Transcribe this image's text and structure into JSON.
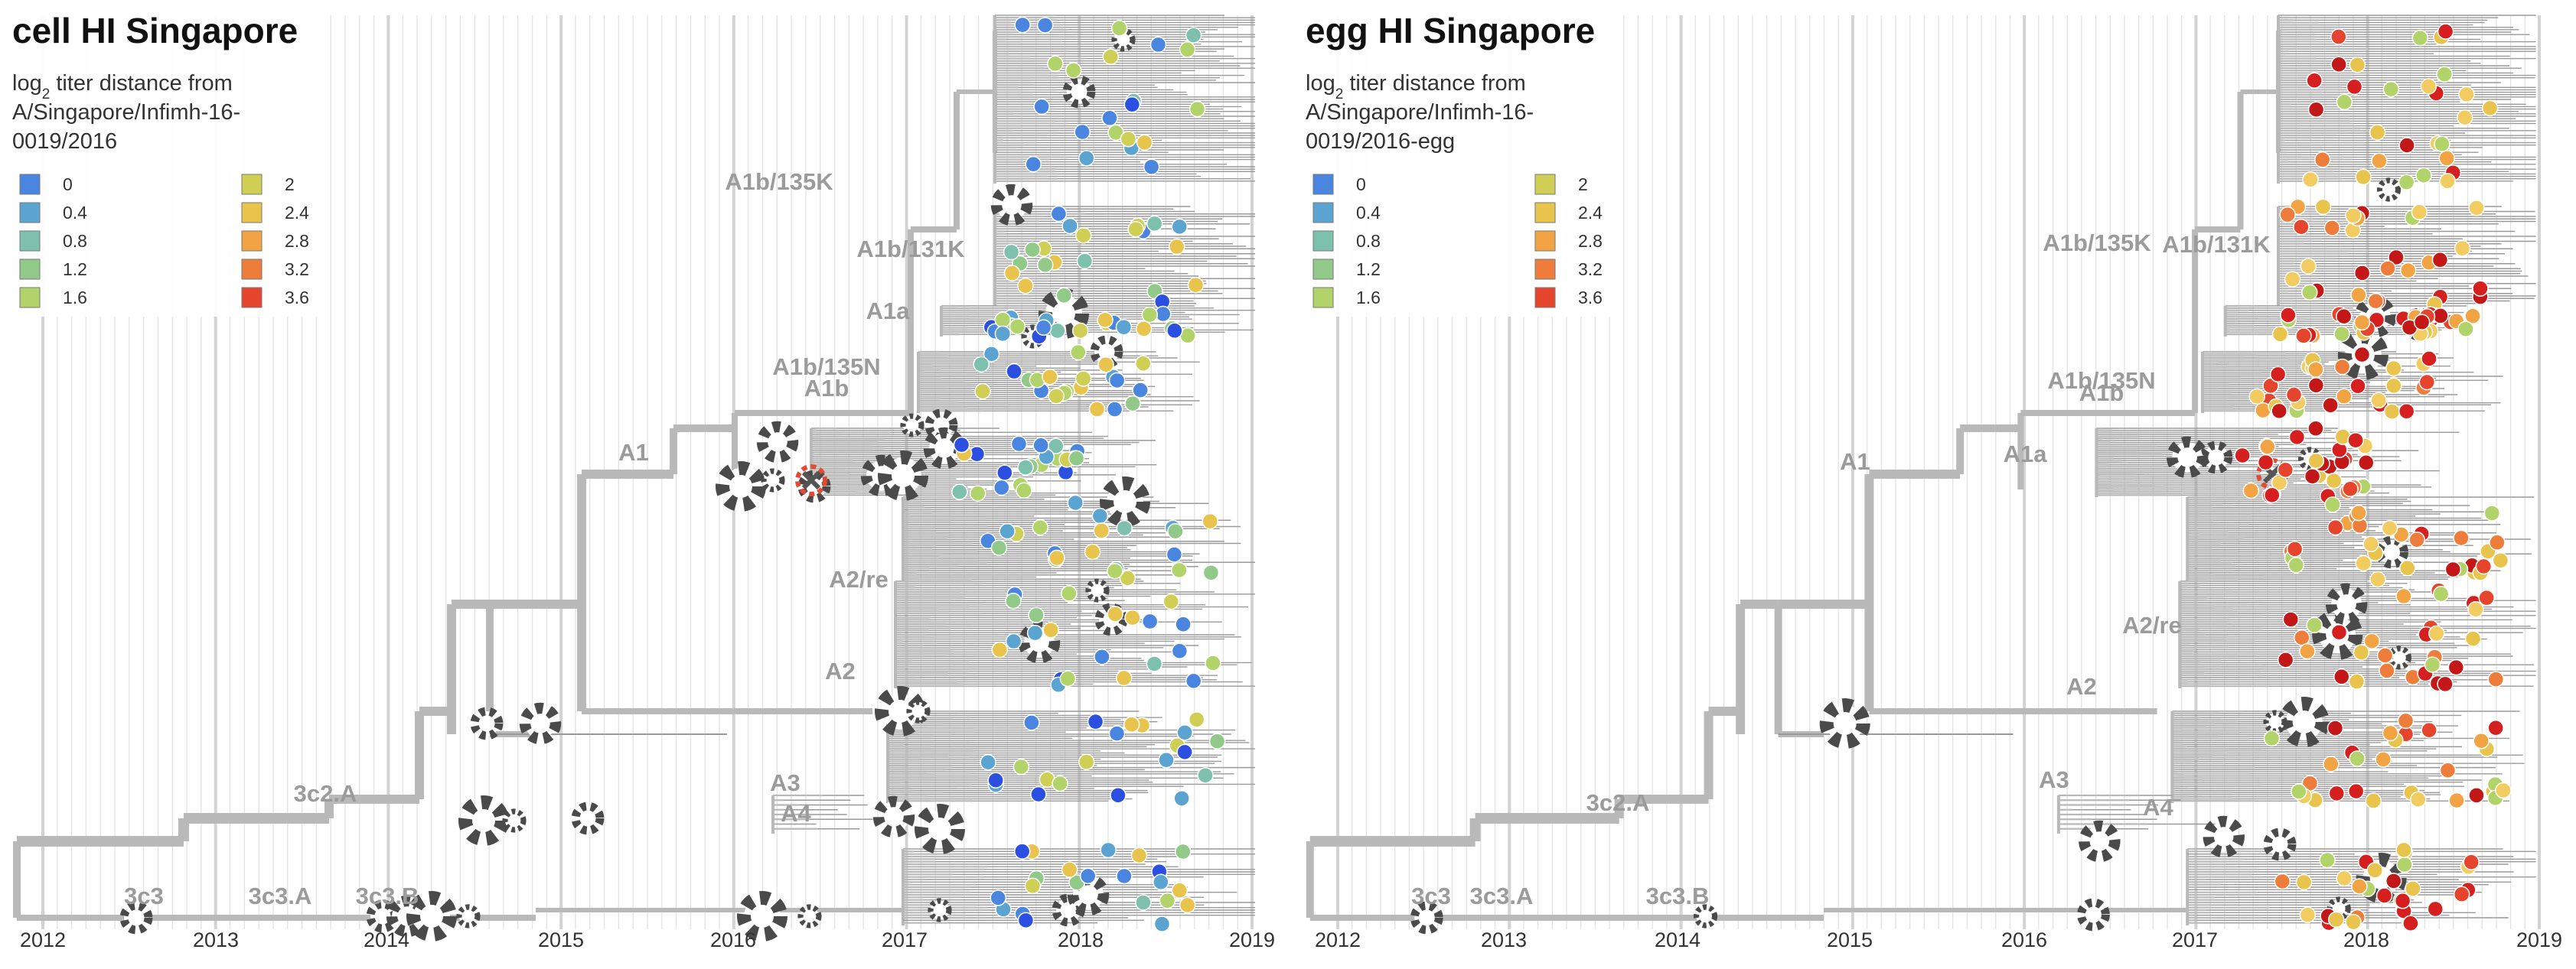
{
  "panels": [
    {
      "id": "left",
      "title": "cell HI Singapore",
      "subtitle_prefix": "log",
      "subtitle_sub": "2",
      "subtitle_lines": [
        " titer distance from",
        "A/Singapore/Infimh-16-",
        "0019/2016"
      ],
      "clades": [
        "A1b/135K",
        "A1b/131K",
        "A1a",
        "A1b/135N",
        "A1b",
        "A1",
        "A2/re",
        "A2",
        "A3",
        "A4",
        "3c2.A",
        "3c3",
        "3c3.A",
        "3c3.B"
      ],
      "years": [
        "2012",
        "2013",
        "2014",
        "2015",
        "2016",
        "2017",
        "2018",
        "2019"
      ],
      "tip_palette": "cool"
    },
    {
      "id": "right",
      "title": "egg HI Singapore",
      "subtitle_prefix": "log",
      "subtitle_sub": "2",
      "subtitle_lines": [
        " titer distance from",
        "A/Singapore/Infimh-16-",
        "0019/2016-egg"
      ],
      "clades": [
        "A1b/135K",
        "A1b/131K",
        "A1b/135N",
        "A1b",
        "A1a",
        "A1",
        "A2/re",
        "A2",
        "A3",
        "A4",
        "3c2.A",
        "3c3",
        "3c3.A",
        "3c3.B"
      ],
      "years": [
        "2012",
        "2013",
        "2014",
        "2015",
        "2016",
        "2017",
        "2018",
        "2019"
      ],
      "tip_palette": "warm"
    }
  ],
  "legend": {
    "entries": [
      {
        "label": "0",
        "color": "#4a86e0"
      },
      {
        "label": "0.4",
        "color": "#5ba4d2"
      },
      {
        "label": "0.8",
        "color": "#7cc0ad"
      },
      {
        "label": "1.2",
        "color": "#91c989"
      },
      {
        "label": "1.6",
        "color": "#b2d36a"
      },
      {
        "label": "2",
        "color": "#cfcf55"
      },
      {
        "label": "2.4",
        "color": "#e8c44d"
      },
      {
        "label": "2.8",
        "color": "#f2a445"
      },
      {
        "label": "3.2",
        "color": "#ee7d3c"
      },
      {
        "label": "3.6",
        "color": "#e5452d"
      }
    ]
  },
  "colors": {
    "branch": "#b9b9b9",
    "branch_dark": "#8c8c8c",
    "gridline": "#e3e3e3",
    "clade_label": "#9b9b9b",
    "gear": "#4a4a4a",
    "highlight": "#e34a33"
  },
  "icons": [
    "gear-icon",
    "crossed-tools-icon"
  ]
}
